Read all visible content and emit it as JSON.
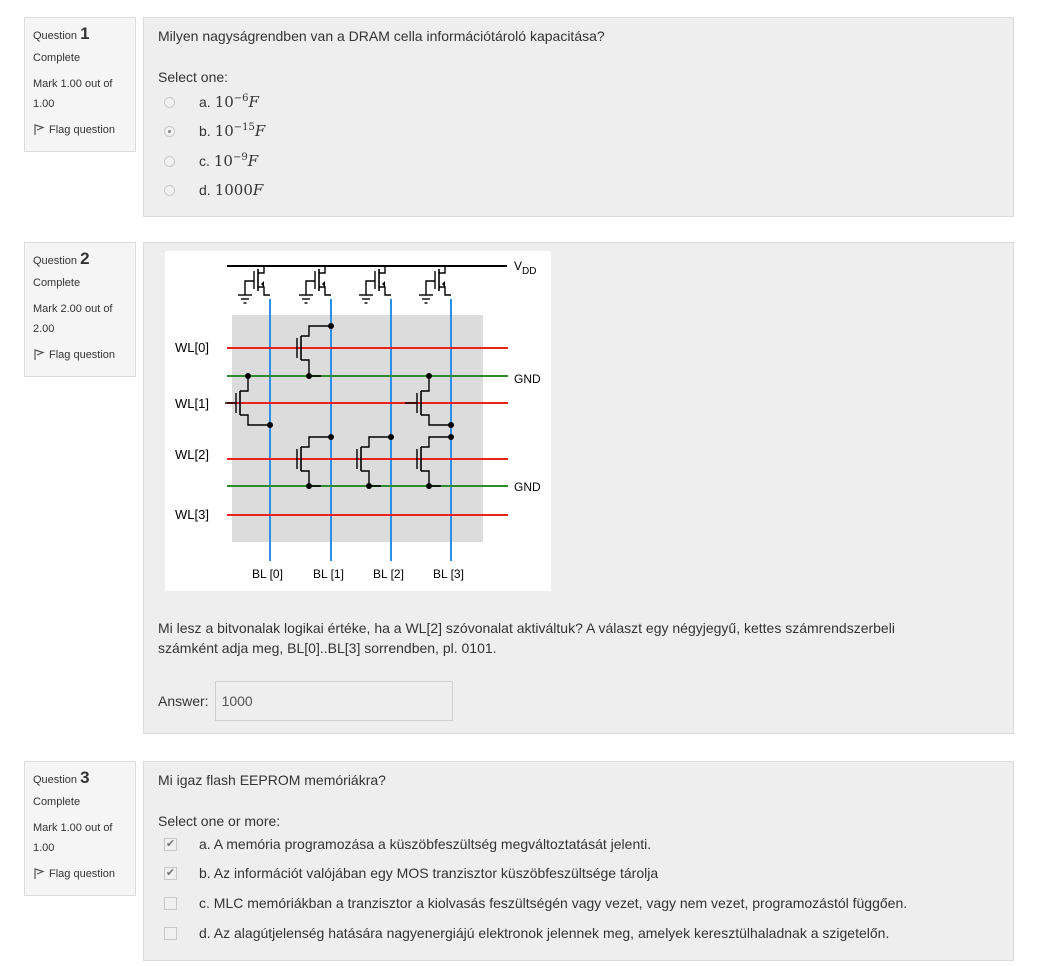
{
  "questions": [
    {
      "number_prefix": "Question",
      "number": "1",
      "state": "Complete",
      "mark": "Mark 1.00 out of 1.00",
      "flag_label": "Flag question",
      "text": "Milyen nagyságrendben van a DRAM cella információtároló kapacitása?",
      "prompt": "Select one:",
      "options": [
        {
          "letter": "a.",
          "base": "10",
          "exp": "−6",
          "unit": "F",
          "selected": false
        },
        {
          "letter": "b.",
          "base": "10",
          "exp": "−15",
          "unit": "F",
          "selected": true
        },
        {
          "letter": "c.",
          "base": "10",
          "exp": "−9",
          "unit": "F",
          "selected": false
        },
        {
          "letter": "d.",
          "base": "1000",
          "exp": "",
          "unit": "F",
          "selected": false
        }
      ]
    },
    {
      "number_prefix": "Question",
      "number": "2",
      "state": "Complete",
      "mark": "Mark 2.00 out of 2.00",
      "flag_label": "Flag question",
      "diagram": {
        "vdd": "V",
        "vdd_sub": "DD",
        "gnd1": "GND",
        "gnd2": "GND",
        "word_lines": [
          "WL[0]",
          "WL[1]",
          "WL[2]",
          "WL[3]"
        ],
        "bit_lines": [
          "BL [0]",
          "BL [1]",
          "BL [2]",
          "BL [3]"
        ]
      },
      "text_line1": "Mi lesz a bitvonalak logikai értéke, ha a WL[2] szóvonalat aktiváltuk? A választ egy négyjegyű, kettes számrendszerbeli",
      "text_line2": "számként adja meg, BL[0]..BL[3] sorrendben, pl. 0101.",
      "answer_label": "Answer:",
      "answer_value": "1000"
    },
    {
      "number_prefix": "Question",
      "number": "3",
      "state": "Complete",
      "mark": "Mark 1.00 out of 1.00",
      "flag_label": "Flag question",
      "text": "Mi igaz flash EEPROM memóriákra?",
      "prompt": "Select one or more:",
      "options": [
        {
          "label": "a. A memória programozása a küszöbfeszültség megváltoztatását jelenti.",
          "checked": true
        },
        {
          "label": "b. Az információt valójában egy MOS tranzisztor küszöbfeszültsége tárolja",
          "checked": true
        },
        {
          "label": "c. MLC memóriákban a tranzisztor a kiolvasás feszültségén vagy vezet, vagy nem vezet, programozástól függően.",
          "checked": false
        },
        {
          "label": "d. Az alagútjelenség hatására nagyenergiájú elektronok jelennek meg, amelyek keresztülhaladnak a szigetelőn.",
          "checked": false
        }
      ]
    }
  ],
  "colors": {
    "word_line": "#e8231e",
    "bit_line": "#2e8fe8",
    "gnd_line": "#2e8b2e",
    "cell_bg": "#dcdcdc"
  }
}
